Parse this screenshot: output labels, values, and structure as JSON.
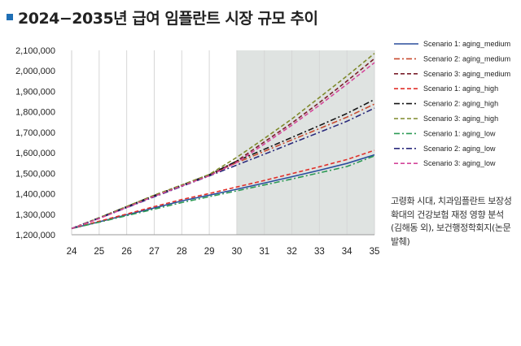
{
  "title": "2024−2035년 급여 임플란트 시장 규모 추이",
  "source_note": "고령화 시대, 치과임플란트 보장성 확대의 건강보험 재정 영향 분석(김해동 외), 보건행정학회지(논문 발췌)",
  "colors": {
    "title_marker": "#1f6fb5",
    "shade": "#dfe3e1"
  },
  "chart_data": {
    "type": "line",
    "title": "2024−2035년 급여 임플란트 시장 규모 추이",
    "xlabel": "",
    "ylabel": "",
    "x": [
      24,
      25,
      26,
      27,
      28,
      29,
      30,
      31,
      32,
      33,
      34,
      35
    ],
    "xlim": [
      24,
      35
    ],
    "ylim": [
      1200000,
      2100000
    ],
    "y_ticks": [
      1200000,
      1300000,
      1400000,
      1500000,
      1600000,
      1700000,
      1800000,
      1900000,
      2000000,
      2100000
    ],
    "y_tick_labels": [
      "1,200,000",
      "1,300,000",
      "1,400,000",
      "1,500,000",
      "1,600,000",
      "1,700,000",
      "1,800,000",
      "1,900,000",
      "2,000,000",
      "2,100,000"
    ],
    "x_tick_labels": [
      "24",
      "25",
      "26",
      "27",
      "28",
      "29",
      "30",
      "31",
      "32",
      "33",
      "34",
      "35"
    ],
    "shaded_region": [
      30,
      35
    ],
    "grid": "vertical",
    "legend_position": "right",
    "series": [
      {
        "name": "Scenario 1: aging_medium",
        "color": "#2a4d9c",
        "dash": "solid",
        "values": [
          1230000,
          1263000,
          1297000,
          1331000,
          1365000,
          1393000,
          1422000,
          1452000,
          1483000,
          1515000,
          1548000,
          1590000
        ]
      },
      {
        "name": "Scenario 2: aging_medium",
        "color": "#c84a2e",
        "dash": "dashdot",
        "values": [
          1230000,
          1282000,
          1335000,
          1390000,
          1440000,
          1490000,
          1552000,
          1607000,
          1663000,
          1718000,
          1774000,
          1838000
        ]
      },
      {
        "name": "Scenario 3: aging_medium",
        "color": "#7a1f2b",
        "dash": "dashed",
        "values": [
          1230000,
          1280000,
          1335000,
          1390000,
          1440000,
          1490000,
          1560000,
          1653000,
          1745000,
          1845000,
          1950000,
          2060000
        ]
      },
      {
        "name": "Scenario 1: aging_high",
        "color": "#e0302a",
        "dash": "dashed",
        "values": [
          1230000,
          1266000,
          1301000,
          1337000,
          1372000,
          1401000,
          1433000,
          1465000,
          1498000,
          1532000,
          1567000,
          1612000
        ]
      },
      {
        "name": "Scenario 2: aging_high",
        "color": "#151515",
        "dash": "dashdot",
        "values": [
          1230000,
          1283000,
          1337000,
          1392000,
          1442000,
          1493000,
          1560000,
          1617000,
          1675000,
          1733000,
          1792000,
          1860000
        ]
      },
      {
        "name": "Scenario 3: aging_high",
        "color": "#7f8a2c",
        "dash": "dashed",
        "values": [
          1230000,
          1283000,
          1338000,
          1393000,
          1443000,
          1494000,
          1578000,
          1670000,
          1765000,
          1870000,
          1975000,
          2085000
        ]
      },
      {
        "name": "Scenario 1: aging_low",
        "color": "#2c9a55",
        "dash": "dashdot",
        "values": [
          1230000,
          1261000,
          1293000,
          1325000,
          1357000,
          1386000,
          1414000,
          1443000,
          1472000,
          1502000,
          1533000,
          1585000
        ]
      },
      {
        "name": "Scenario 2: aging_low",
        "color": "#2a2a7c",
        "dash": "dashdot",
        "values": [
          1230000,
          1280000,
          1332000,
          1385000,
          1436000,
          1487000,
          1540000,
          1593000,
          1647000,
          1700000,
          1754000,
          1818000
        ]
      },
      {
        "name": "Scenario 3: aging_low",
        "color": "#d4469a",
        "dash": "dashed",
        "values": [
          1230000,
          1279000,
          1333000,
          1388000,
          1438000,
          1488000,
          1553000,
          1643000,
          1735000,
          1832000,
          1935000,
          2040000
        ]
      }
    ]
  }
}
